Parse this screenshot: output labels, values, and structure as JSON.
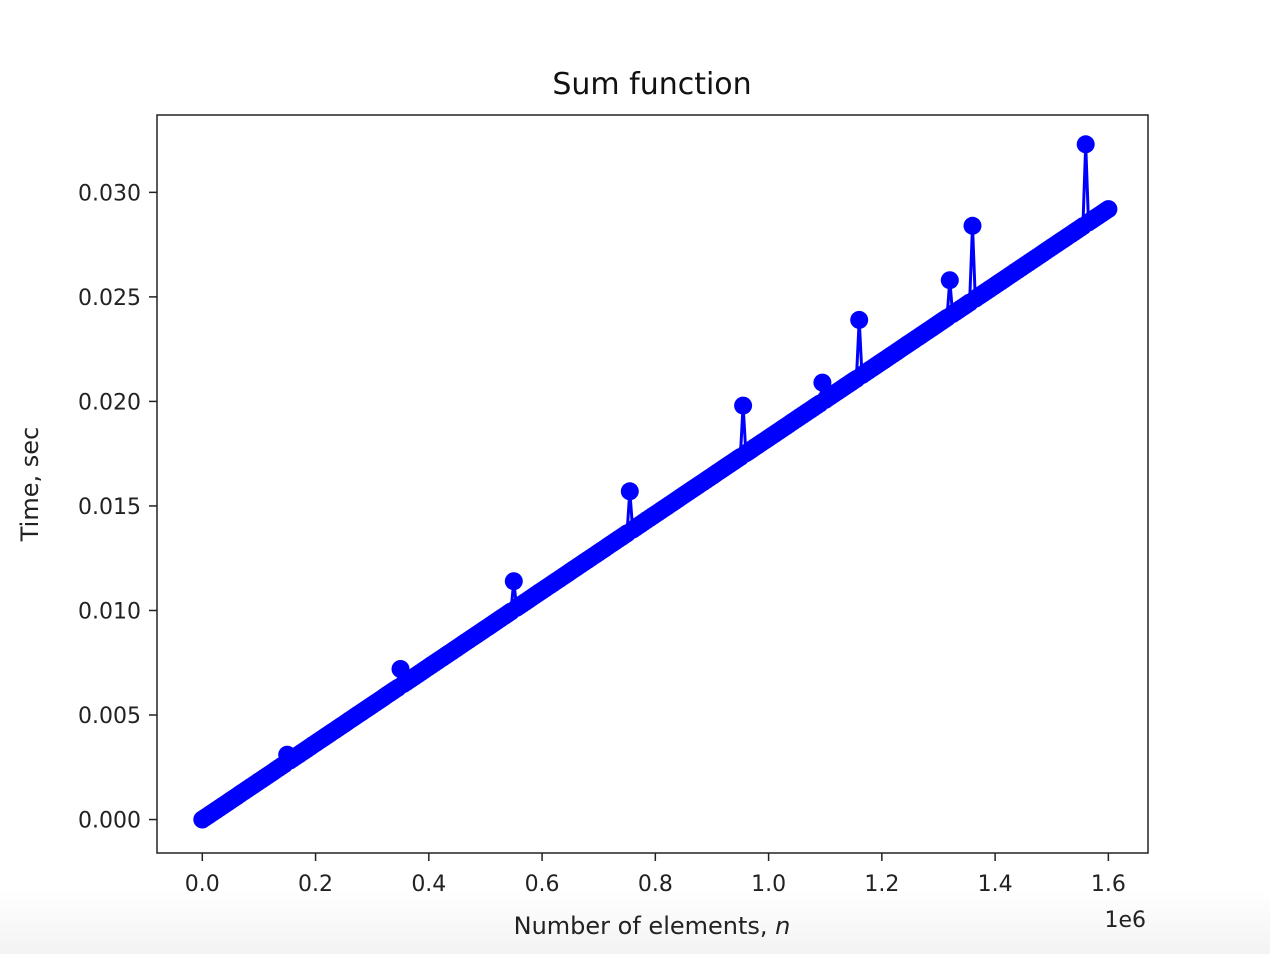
{
  "chart_data": {
    "type": "line",
    "title": "Sum function",
    "xlabel_main": "Number of elements, ",
    "xlabel_var": "n",
    "ylabel": "Time, sec",
    "x_offset_label": "1e6",
    "x_ticks": [
      0.0,
      0.2,
      0.4,
      0.6,
      0.8,
      1.0,
      1.2,
      1.4,
      1.6
    ],
    "x_tick_labels": [
      "0.0",
      "0.2",
      "0.4",
      "0.6",
      "0.8",
      "1.0",
      "1.2",
      "1.4",
      "1.6"
    ],
    "y_ticks": [
      0.0,
      0.005,
      0.01,
      0.015,
      0.02,
      0.025,
      0.03
    ],
    "y_tick_labels": [
      "0.000",
      "0.005",
      "0.010",
      "0.015",
      "0.020",
      "0.025",
      "0.030"
    ],
    "xlim": [
      -0.08,
      1.67
    ],
    "ylim": [
      -0.0016,
      0.0337
    ],
    "grid": false,
    "legend": "none",
    "series": [
      {
        "color": "#0000ff",
        "marker": "circle",
        "trend_slope": 0.01825,
        "x_end": 1.6,
        "step": 0.005,
        "spikes": [
          {
            "x": 0.15,
            "y": 0.0031
          },
          {
            "x": 0.35,
            "y": 0.0072
          },
          {
            "x": 0.55,
            "y": 0.0114
          },
          {
            "x": 0.755,
            "y": 0.0157
          },
          {
            "x": 0.955,
            "y": 0.0198
          },
          {
            "x": 1.095,
            "y": 0.0209
          },
          {
            "x": 1.16,
            "y": 0.0239
          },
          {
            "x": 1.32,
            "y": 0.0258
          },
          {
            "x": 1.36,
            "y": 0.0284
          },
          {
            "x": 1.562,
            "y": 0.0323
          }
        ]
      }
    ]
  },
  "colors": {
    "series": "#0000ff",
    "axes": "#222222",
    "background": "#ffffff"
  }
}
